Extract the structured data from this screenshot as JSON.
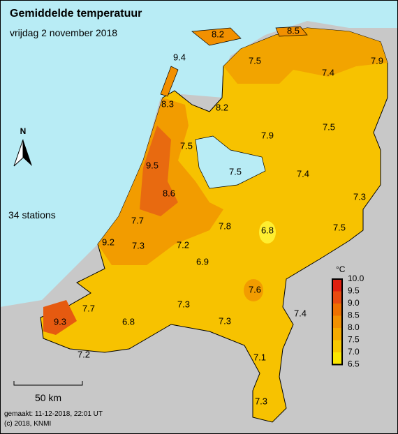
{
  "header": {
    "title": "Gemiddelde temperatuur",
    "subtitle": "vrijdag 2 november 2018"
  },
  "map": {
    "north": "N",
    "station_count": "34 stations",
    "scale": "50 km",
    "stations": [
      "8.2",
      "8.5",
      "9.4",
      "7.5",
      "7.9",
      "7.4",
      "8.3",
      "8.2",
      "7.9",
      "7.5",
      "7.5",
      "9.5",
      "7.5",
      "7.4",
      "8.6",
      "7.3",
      "7.7",
      "7.8",
      "6.8",
      "7.5",
      "9.2",
      "7.3",
      "7.2",
      "6.9",
      "7.6",
      "7.7",
      "7.3",
      "7.4",
      "9.3",
      "6.8",
      "7.3",
      "7.2",
      "7.1",
      "7.3"
    ]
  },
  "legend": {
    "unit": "°C",
    "labels": [
      "10.0",
      "9.5",
      "9.0",
      "8.5",
      "8.0",
      "7.5",
      "7.0",
      "6.5"
    ]
  },
  "footer": {
    "made": "gemaakt: 11-12-2018, 22:01 UT",
    "copyright": "(c) 2018, KNMI"
  }
}
